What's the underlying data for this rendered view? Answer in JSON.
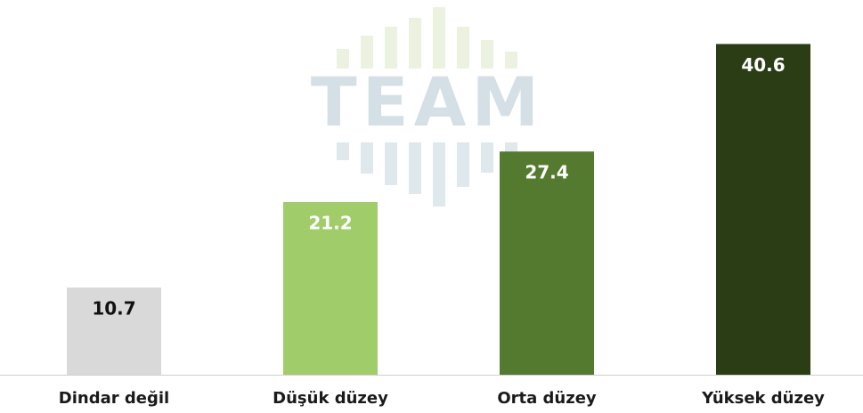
{
  "chart_data": {
    "type": "bar",
    "watermark": "TEAM",
    "categories": [
      "Dindar değil",
      "Düşük düzey",
      "Orta düzey",
      "Yüksek düzey"
    ],
    "values": [
      10.7,
      21.2,
      27.4,
      40.6
    ],
    "colors": [
      "#d9d9d9",
      "#a0cc6a",
      "#537a2e",
      "#2b3d15"
    ],
    "ylim": [
      0,
      46
    ]
  }
}
